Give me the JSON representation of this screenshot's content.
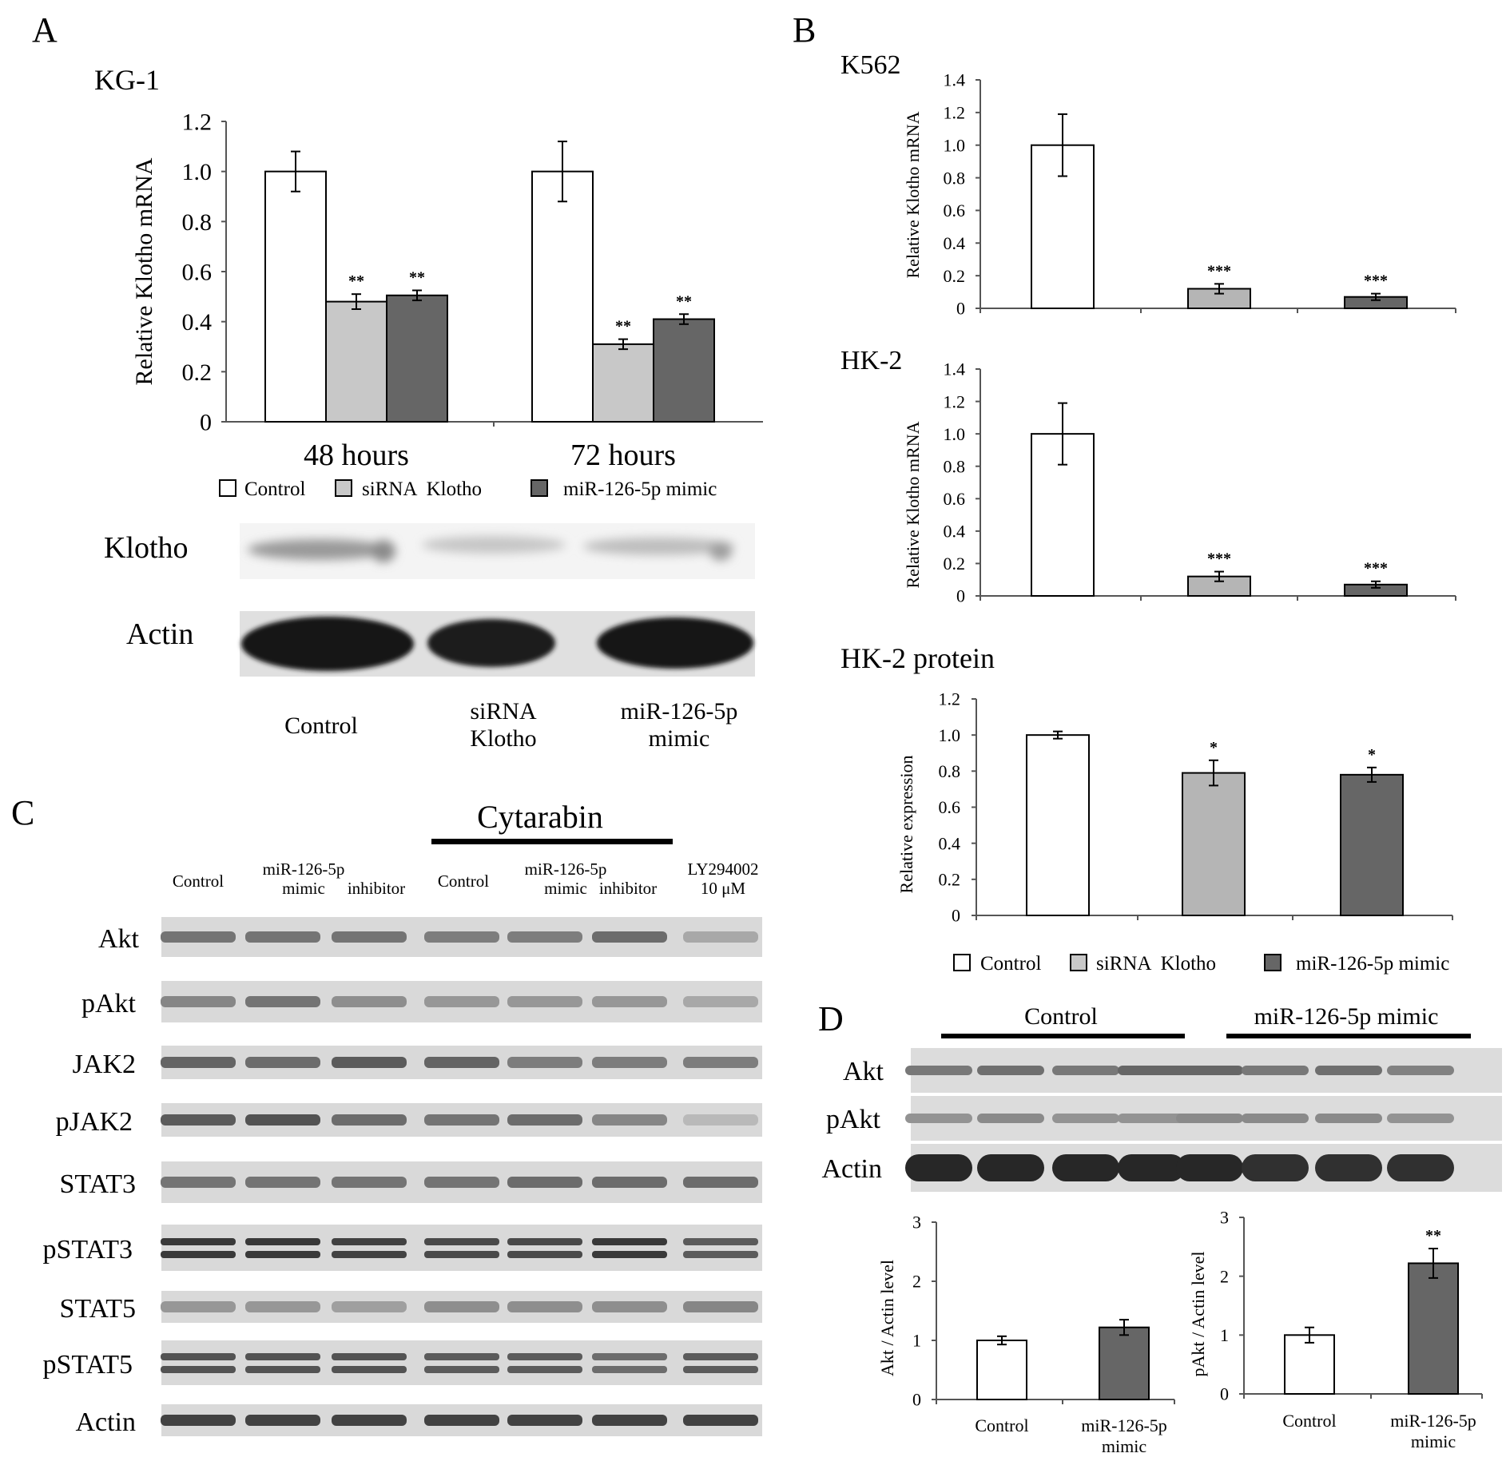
{
  "panels": {
    "A": "A",
    "B": "B",
    "C": "C",
    "D": "D"
  },
  "colors": {
    "control": "#ffffff",
    "sirna": "#c8c8c8",
    "mimic": "#666666",
    "sirna_b": "#b5b5b5",
    "axis": "#555555",
    "bar_stroke": "#000000"
  },
  "legend": {
    "control": "Control",
    "sirna": "siRNA  Klotho",
    "mimic": "miR-126-5p mimic"
  },
  "chart_data": [
    {
      "id": "kg1",
      "type": "bar",
      "title": "KG-1",
      "ylabel": "Relative Klotho mRNA",
      "xlabel": "",
      "ylim": [
        0,
        1.2
      ],
      "ytick_labels": [
        "0",
        "0.2",
        "0.4",
        "0.6",
        "0.8",
        "1.0",
        "1.2"
      ],
      "categories": [
        "48 hours",
        "72 hours"
      ],
      "series": [
        {
          "name": "Control",
          "values": [
            1.0,
            1.0
          ],
          "errors": [
            0.08,
            0.12
          ],
          "sig": [
            "",
            ""
          ]
        },
        {
          "name": "siRNA  Klotho",
          "values": [
            0.48,
            0.31
          ],
          "errors": [
            0.03,
            0.02
          ],
          "sig": [
            "**",
            "**"
          ]
        },
        {
          "name": "miR-126-5p mimic",
          "values": [
            0.505,
            0.41
          ],
          "errors": [
            0.02,
            0.02
          ],
          "sig": [
            "**",
            "**"
          ]
        }
      ]
    },
    {
      "id": "k562",
      "type": "bar",
      "title": "K562",
      "ylabel": "Relative Klotho mRNA",
      "ylim": [
        0,
        1.4
      ],
      "ytick_labels": [
        "0",
        "0.2",
        "0.4",
        "0.6",
        "0.8",
        "1.0",
        "1.2",
        "1.4"
      ],
      "categories": [
        "Control",
        "siRNA  Klotho",
        "miR-126-5p mimic"
      ],
      "values": [
        1.0,
        0.12,
        0.07
      ],
      "errors": [
        0.19,
        0.03,
        0.02
      ],
      "sig": [
        "",
        "***",
        "***"
      ]
    },
    {
      "id": "hk2",
      "type": "bar",
      "title": "HK-2",
      "ylabel": "Relative Klotho mRNA",
      "ylim": [
        0,
        1.4
      ],
      "ytick_labels": [
        "0",
        "0.2",
        "0.4",
        "0.6",
        "0.8",
        "1.0",
        "1.2",
        "1.4"
      ],
      "categories": [
        "Control",
        "siRNA  Klotho",
        "miR-126-5p mimic"
      ],
      "values": [
        1.0,
        0.12,
        0.07
      ],
      "errors": [
        0.19,
        0.03,
        0.02
      ],
      "sig": [
        "",
        "***",
        "***"
      ]
    },
    {
      "id": "hk2p",
      "type": "bar",
      "title": "HK-2 protein",
      "ylabel": "Relative expression",
      "ylim": [
        0,
        1.2
      ],
      "ytick_labels": [
        "0",
        "0.2",
        "0.4",
        "0.6",
        "0.8",
        "1.0",
        "1.2"
      ],
      "categories": [
        "Control",
        "siRNA  Klotho",
        "miR-126-5p mimic"
      ],
      "values": [
        1.0,
        0.79,
        0.78
      ],
      "errors": [
        0.02,
        0.07,
        0.04
      ],
      "sig": [
        "",
        "*",
        "*"
      ]
    },
    {
      "id": "akt",
      "type": "bar",
      "title": "",
      "ylabel": "Akt / Actin level",
      "ylim": [
        0,
        3
      ],
      "ytick_labels": [
        "0",
        "1",
        "2",
        "3"
      ],
      "categories": [
        "Control",
        "miR-126-5p\nmimic"
      ],
      "values": [
        1.0,
        1.22
      ],
      "errors": [
        0.07,
        0.13
      ],
      "sig": [
        "",
        ""
      ]
    },
    {
      "id": "pakt",
      "type": "bar",
      "title": "",
      "ylabel": "pAkt / Actin level",
      "ylim": [
        0,
        3
      ],
      "ytick_labels": [
        "0",
        "1",
        "2",
        "3"
      ],
      "categories": [
        "Control",
        "miR-126-5p\nmimic"
      ],
      "values": [
        1.0,
        2.22
      ],
      "errors": [
        0.13,
        0.25
      ],
      "sig": [
        "",
        "**"
      ]
    }
  ],
  "blotA": {
    "rows": [
      "Klotho",
      "Actin"
    ],
    "lanes": [
      "Control",
      "siRNA\nKlotho",
      "miR-126-5p\nmimic"
    ]
  },
  "blotC": {
    "group": "Cytarabin",
    "lanes": [
      "Control",
      "miR-126-5p\nmimic",
      "inhibitor",
      "Control",
      "miR-126-5p\nmimic",
      "inhibitor",
      "LY294002\n10  μM"
    ],
    "rows": [
      "Akt",
      "pAkt",
      "JAK2",
      "pJAK2",
      "STAT3",
      "pSTAT3",
      "STAT5",
      "pSTAT5",
      "Actin"
    ]
  },
  "blotD": {
    "groups": [
      "Control",
      "miR-126-5p mimic"
    ],
    "rows": [
      "Akt",
      "pAkt",
      "Actin"
    ]
  }
}
